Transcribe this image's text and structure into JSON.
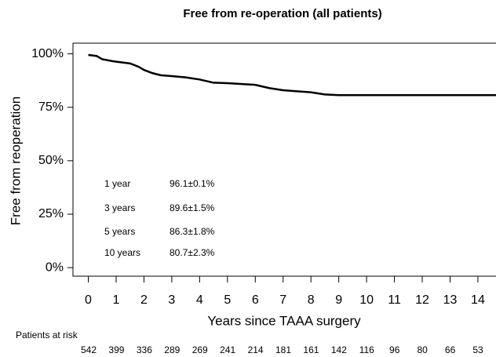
{
  "chart_data": {
    "type": "line",
    "title": "Free from re-operation (all patients)",
    "xlabel": "Years since TAAA surgery",
    "ylabel": "Free from reoperation",
    "xlim": [
      -0.55,
      14.65
    ],
    "ylim": [
      -4,
      105
    ],
    "xticks": [
      0,
      1,
      2,
      3,
      4,
      5,
      6,
      7,
      8,
      9,
      10,
      11,
      12,
      13,
      14
    ],
    "yticks": [
      {
        "value": 0,
        "label": "0%"
      },
      {
        "value": 25,
        "label": "25%"
      },
      {
        "value": 50,
        "label": "50%"
      },
      {
        "value": 75,
        "label": "75%"
      },
      {
        "value": 100,
        "label": "100%"
      }
    ],
    "series": [
      {
        "color": "#000000",
        "x": [
          0,
          0.3,
          0.5,
          0.9,
          1.2,
          1.5,
          1.8,
          2,
          2.3,
          2.6,
          3,
          3.5,
          4,
          4.5,
          5,
          6,
          6.5,
          7,
          8,
          8.5,
          9,
          14.65
        ],
        "values": [
          99.5,
          99,
          97.5,
          96.5,
          96,
          95.5,
          94,
          92.5,
          91,
          90,
          89.6,
          89,
          88,
          86.5,
          86.3,
          85.5,
          84,
          83,
          82,
          81,
          80.7,
          80.7
        ]
      }
    ],
    "annotations": [
      {
        "label": "1 year",
        "value": "96.1±0.1%"
      },
      {
        "label": "3 years",
        "value": "89.6±1.5%"
      },
      {
        "label": "5 years",
        "value": "86.3±1.8%"
      },
      {
        "label": "10 years",
        "value": "80.7±2.3%"
      }
    ],
    "risk_table": {
      "title": "Patients at risk",
      "counts": [
        542,
        399,
        336,
        289,
        269,
        241,
        214,
        181,
        161,
        142,
        116,
        96,
        80,
        66,
        53
      ]
    }
  }
}
